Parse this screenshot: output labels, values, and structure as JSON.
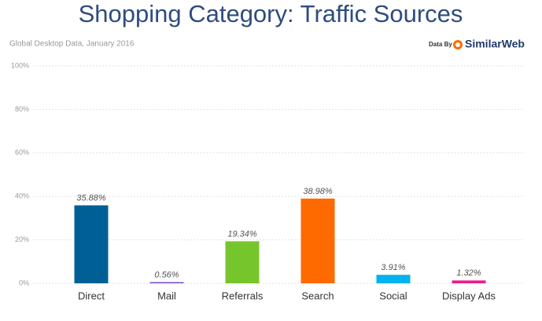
{
  "chart_data": {
    "type": "bar",
    "title": "Shopping Category: Traffic Sources",
    "subtitle": "Global Desktop Data, January 2016",
    "credit_prefix": "Data By",
    "credit": "SimilarWeb",
    "categories": [
      "Direct",
      "Mail",
      "Referrals",
      "Search",
      "Social",
      "Display Ads"
    ],
    "values": [
      35.88,
      0.56,
      19.34,
      38.98,
      3.91,
      1.32
    ],
    "value_labels": [
      "35.88%",
      "0.56%",
      "19.34%",
      "38.98%",
      "3.91%",
      "1.32%"
    ],
    "colors": [
      "#006096",
      "#7b4fc9",
      "#77c52c",
      "#ff6a00",
      "#00b3f0",
      "#e91e8c"
    ],
    "ylim": [
      0,
      100
    ],
    "yticks": [
      {
        "value": 0,
        "label": "0%"
      },
      {
        "value": 20,
        "label": "20%"
      },
      {
        "value": 40,
        "label": "40%"
      },
      {
        "value": 60,
        "label": "60%"
      },
      {
        "value": 80,
        "label": "80%"
      },
      {
        "value": 100,
        "label": "100%"
      }
    ],
    "grid": true
  }
}
